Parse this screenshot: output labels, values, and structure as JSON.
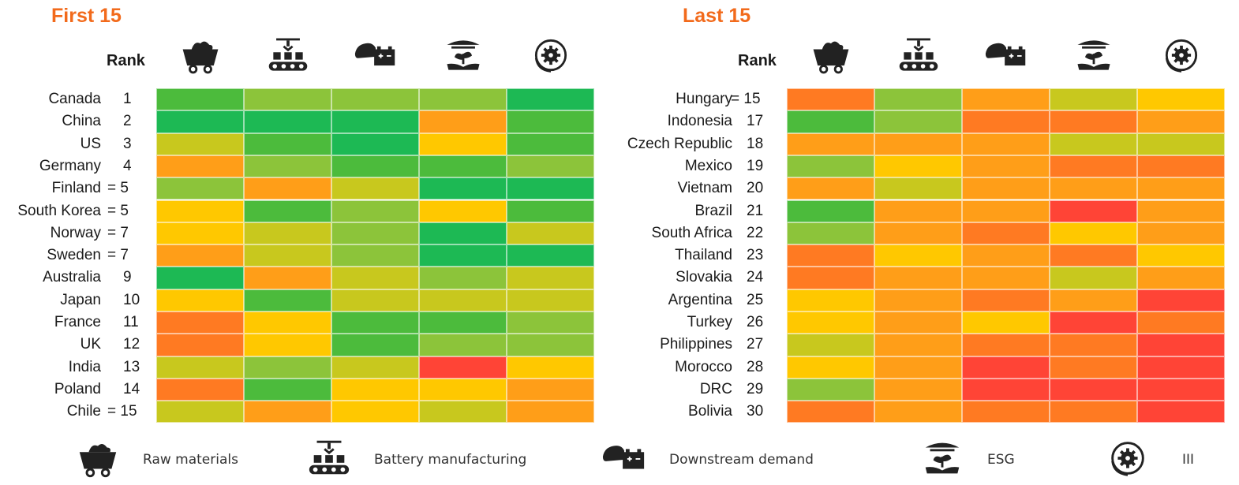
{
  "colors": {
    "g5": "#1db954",
    "g4": "#4cbb3c",
    "g3": "#8cc43a",
    "y2": "#c8c81e",
    "y1": "#ffc800",
    "o1": "#ff9e18",
    "o2": "#ff7a22",
    "r": "#ff4436"
  },
  "legend": [
    {
      "icon": "mine-cart-icon",
      "label": "Raw materials"
    },
    {
      "icon": "factory-conveyor-icon",
      "label": "Battery manufacturing"
    },
    {
      "icon": "car-battery-icon",
      "label": "Downstream demand"
    },
    {
      "icon": "plant-hand-icon",
      "label": "ESG"
    },
    {
      "icon": "circular-gear-icon",
      "label": "III"
    }
  ],
  "chart_data": [
    {
      "type": "heatmap",
      "title": "First 15",
      "rank_header": "Rank",
      "columns": [
        "Raw materials",
        "Battery manufacturing",
        "Downstream demand",
        "ESG",
        "III"
      ],
      "rows": [
        {
          "country": "Canada",
          "rank": "1",
          "scores": [
            "g4",
            "g3",
            "g3",
            "g3",
            "g5"
          ]
        },
        {
          "country": "China",
          "rank": "2",
          "scores": [
            "g5",
            "g5",
            "g5",
            "o1",
            "g4"
          ]
        },
        {
          "country": "US",
          "rank": "3",
          "scores": [
            "y2",
            "g4",
            "g5",
            "y1",
            "g4"
          ]
        },
        {
          "country": "Germany",
          "rank": "4",
          "scores": [
            "o1",
            "g3",
            "g4",
            "g4",
            "g3"
          ]
        },
        {
          "country": "Finland",
          "rank": "= 5",
          "scores": [
            "g3",
            "o1",
            "y2",
            "g5",
            "g5"
          ]
        },
        {
          "country": "South Korea",
          "rank": "= 5",
          "scores": [
            "y1",
            "g4",
            "g3",
            "y1",
            "g4"
          ]
        },
        {
          "country": "Norway",
          "rank": "= 7",
          "scores": [
            "y1",
            "y2",
            "g3",
            "g5",
            "y2"
          ]
        },
        {
          "country": "Sweden",
          "rank": "= 7",
          "scores": [
            "o1",
            "y2",
            "g3",
            "g5",
            "g5"
          ]
        },
        {
          "country": "Australia",
          "rank": "9",
          "scores": [
            "g5",
            "o1",
            "y2",
            "g3",
            "y2"
          ]
        },
        {
          "country": "Japan",
          "rank": "10",
          "scores": [
            "y1",
            "g4",
            "y2",
            "y2",
            "y2"
          ]
        },
        {
          "country": "France",
          "rank": "11",
          "scores": [
            "o2",
            "y1",
            "g4",
            "g4",
            "g3"
          ]
        },
        {
          "country": "UK",
          "rank": "12",
          "scores": [
            "o2",
            "y1",
            "g4",
            "g3",
            "g3"
          ]
        },
        {
          "country": "India",
          "rank": "13",
          "scores": [
            "y2",
            "g3",
            "y2",
            "r",
            "y1"
          ]
        },
        {
          "country": "Poland",
          "rank": "14",
          "scores": [
            "o2",
            "g4",
            "y1",
            "y1",
            "o1"
          ]
        },
        {
          "country": "Chile",
          "rank": "= 15",
          "scores": [
            "y2",
            "o1",
            "y1",
            "y2",
            "o1"
          ]
        }
      ]
    },
    {
      "type": "heatmap",
      "title": "Last 15",
      "rank_header": "Rank",
      "columns": [
        "Raw materials",
        "Battery manufacturing",
        "Downstream demand",
        "ESG",
        "III"
      ],
      "rows": [
        {
          "country": "Hungary",
          "rank": "= 15",
          "scores": [
            "o2",
            "g3",
            "o1",
            "y2",
            "y1"
          ]
        },
        {
          "country": "Indonesia",
          "rank": "17",
          "scores": [
            "g4",
            "g3",
            "o2",
            "o2",
            "o1"
          ]
        },
        {
          "country": "Czech Republic",
          "rank": "18",
          "scores": [
            "o1",
            "o1",
            "o1",
            "y2",
            "y2"
          ]
        },
        {
          "country": "Mexico",
          "rank": "19",
          "scores": [
            "g3",
            "y1",
            "o1",
            "o2",
            "o2"
          ]
        },
        {
          "country": "Vietnam",
          "rank": "20",
          "scores": [
            "o1",
            "y2",
            "o1",
            "o1",
            "o1"
          ]
        },
        {
          "country": "Brazil",
          "rank": "21",
          "scores": [
            "g4",
            "o1",
            "o1",
            "r",
            "o1"
          ]
        },
        {
          "country": "South Africa",
          "rank": "22",
          "scores": [
            "g3",
            "o1",
            "o2",
            "y1",
            "o1"
          ]
        },
        {
          "country": "Thailand",
          "rank": "23",
          "scores": [
            "o2",
            "y1",
            "o1",
            "o2",
            "y1"
          ]
        },
        {
          "country": "Slovakia",
          "rank": "24",
          "scores": [
            "o2",
            "o1",
            "o1",
            "y2",
            "o1"
          ]
        },
        {
          "country": "Argentina",
          "rank": "25",
          "scores": [
            "y1",
            "o1",
            "o2",
            "o1",
            "r"
          ]
        },
        {
          "country": "Turkey",
          "rank": "26",
          "scores": [
            "y1",
            "o1",
            "y1",
            "r",
            "o2"
          ]
        },
        {
          "country": "Philippines",
          "rank": "27",
          "scores": [
            "y2",
            "o1",
            "o2",
            "o2",
            "r"
          ]
        },
        {
          "country": "Morocco",
          "rank": "28",
          "scores": [
            "y1",
            "o1",
            "r",
            "o2",
            "r"
          ]
        },
        {
          "country": "DRC",
          "rank": "29",
          "scores": [
            "g3",
            "o1",
            "r",
            "r",
            "r"
          ]
        },
        {
          "country": "Bolivia",
          "rank": "30",
          "scores": [
            "o2",
            "o1",
            "o2",
            "o2",
            "r"
          ]
        }
      ]
    }
  ]
}
